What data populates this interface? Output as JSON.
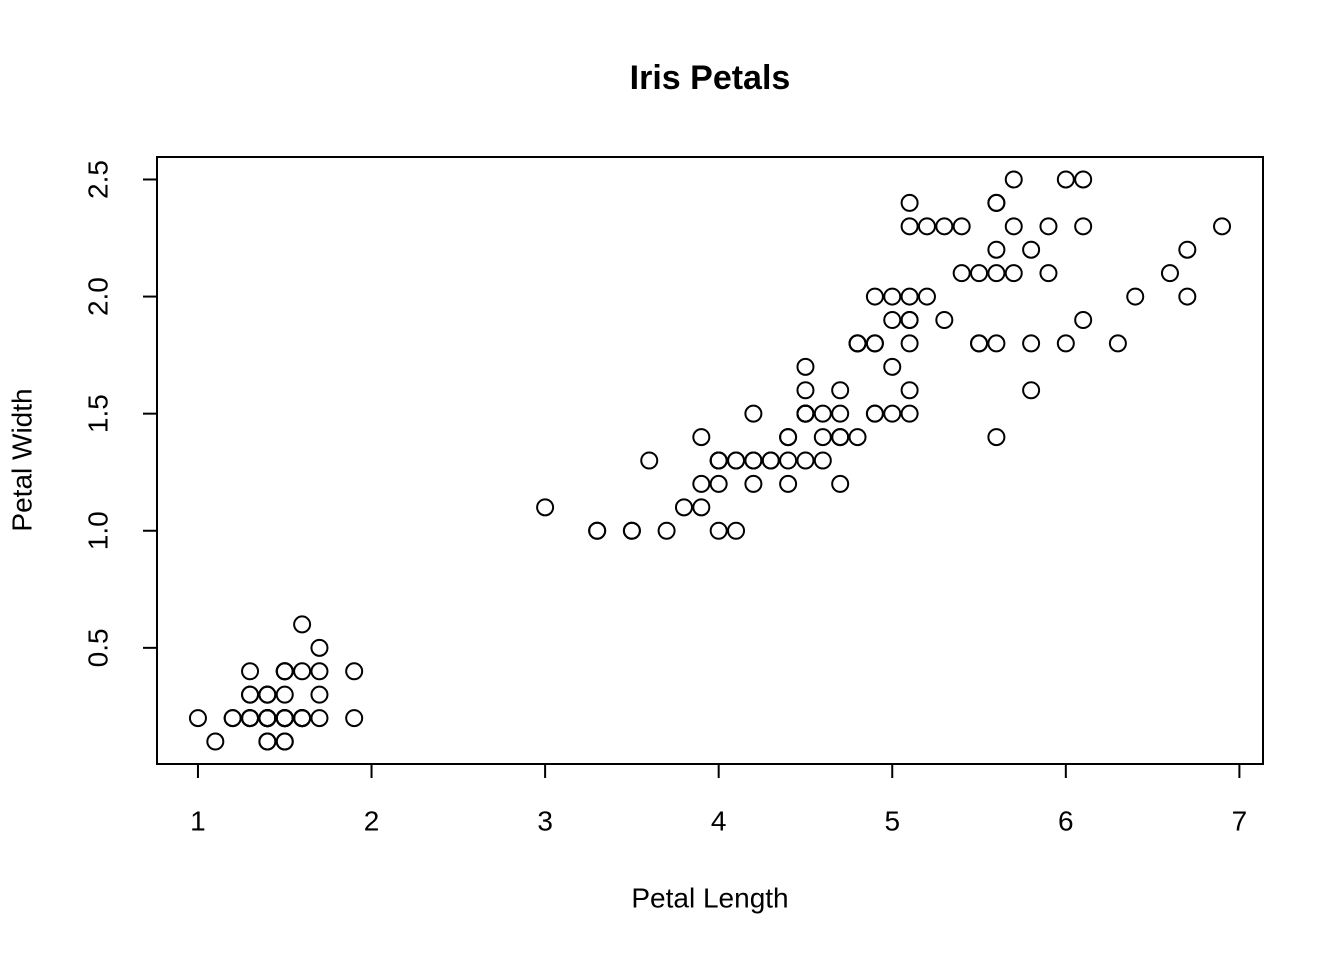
{
  "chart_data": {
    "type": "scatter",
    "title": "Iris Petals",
    "x_label": "Petal Length",
    "y_label": "Petal Width",
    "x": [
      1.4,
      1.4,
      1.3,
      1.5,
      1.4,
      1.7,
      1.4,
      1.5,
      1.4,
      1.5,
      1.5,
      1.6,
      1.4,
      1.1,
      1.2,
      1.5,
      1.3,
      1.4,
      1.7,
      1.5,
      1.7,
      1.5,
      1.0,
      1.7,
      1.9,
      1.6,
      1.6,
      1.5,
      1.4,
      1.6,
      1.6,
      1.5,
      1.5,
      1.4,
      1.5,
      1.2,
      1.3,
      1.4,
      1.3,
      1.5,
      1.3,
      1.3,
      1.3,
      1.6,
      1.9,
      1.4,
      1.6,
      1.4,
      1.5,
      1.4,
      4.7,
      4.5,
      4.9,
      4.0,
      4.6,
      4.5,
      4.7,
      3.3,
      4.6,
      3.9,
      3.5,
      4.2,
      4.0,
      4.7,
      3.6,
      4.4,
      4.5,
      4.1,
      4.5,
      3.9,
      4.8,
      4.0,
      4.9,
      4.7,
      4.3,
      4.4,
      4.8,
      5.0,
      4.5,
      3.5,
      3.8,
      3.7,
      3.9,
      5.1,
      4.5,
      4.5,
      4.7,
      4.4,
      4.1,
      4.0,
      4.4,
      4.6,
      4.0,
      3.3,
      4.2,
      4.2,
      4.2,
      4.3,
      3.0,
      4.1,
      6.0,
      5.1,
      5.9,
      5.6,
      5.8,
      6.6,
      4.5,
      6.3,
      5.8,
      6.1,
      5.1,
      5.3,
      5.5,
      5.0,
      5.1,
      5.3,
      5.5,
      6.7,
      6.9,
      5.0,
      5.7,
      4.9,
      6.7,
      4.9,
      5.7,
      6.0,
      4.8,
      4.9,
      5.6,
      5.8,
      6.1,
      6.4,
      5.6,
      5.1,
      5.6,
      6.1,
      5.6,
      5.5,
      4.8,
      5.4,
      5.6,
      5.1,
      5.1,
      5.9,
      5.7,
      5.2,
      5.0,
      5.2,
      5.4,
      5.1
    ],
    "values": [
      0.2,
      0.2,
      0.2,
      0.2,
      0.2,
      0.4,
      0.3,
      0.2,
      0.2,
      0.1,
      0.2,
      0.2,
      0.1,
      0.1,
      0.2,
      0.4,
      0.4,
      0.3,
      0.3,
      0.3,
      0.2,
      0.4,
      0.2,
      0.5,
      0.2,
      0.2,
      0.4,
      0.2,
      0.2,
      0.2,
      0.2,
      0.4,
      0.1,
      0.2,
      0.2,
      0.2,
      0.2,
      0.1,
      0.2,
      0.2,
      0.3,
      0.3,
      0.2,
      0.6,
      0.4,
      0.3,
      0.2,
      0.2,
      0.2,
      0.2,
      1.4,
      1.5,
      1.5,
      1.3,
      1.5,
      1.3,
      1.6,
      1.0,
      1.3,
      1.4,
      1.0,
      1.5,
      1.0,
      1.4,
      1.3,
      1.4,
      1.5,
      1.0,
      1.5,
      1.1,
      1.8,
      1.3,
      1.5,
      1.2,
      1.3,
      1.4,
      1.4,
      1.7,
      1.5,
      1.0,
      1.1,
      1.0,
      1.2,
      1.6,
      1.5,
      1.6,
      1.5,
      1.3,
      1.3,
      1.3,
      1.2,
      1.4,
      1.2,
      1.0,
      1.3,
      1.2,
      1.3,
      1.3,
      1.1,
      1.3,
      2.5,
      1.9,
      2.1,
      1.8,
      2.2,
      2.1,
      1.7,
      1.8,
      1.8,
      2.5,
      2.0,
      1.9,
      2.1,
      2.0,
      2.4,
      2.3,
      1.8,
      2.2,
      2.3,
      1.5,
      2.3,
      2.0,
      2.0,
      1.8,
      2.1,
      1.8,
      1.8,
      1.8,
      2.1,
      1.6,
      1.9,
      2.0,
      2.2,
      1.5,
      1.4,
      2.3,
      2.4,
      1.8,
      1.8,
      2.1,
      2.4,
      2.3,
      1.9,
      2.3,
      2.5,
      2.3,
      1.9,
      2.0,
      2.3,
      1.8
    ],
    "color": "#000000",
    "xlim": [
      0.764,
      7.136
    ],
    "xticks": [
      1,
      2,
      3,
      4,
      5,
      6,
      7
    ],
    "ylim": [
      0.004,
      2.596
    ],
    "yticks": [
      0.5,
      {
        "value": 1.0,
        "label": "1.0"
      },
      1.5,
      {
        "value": 2.0,
        "label": "2.0"
      },
      2.5
    ],
    "grid": false
  }
}
